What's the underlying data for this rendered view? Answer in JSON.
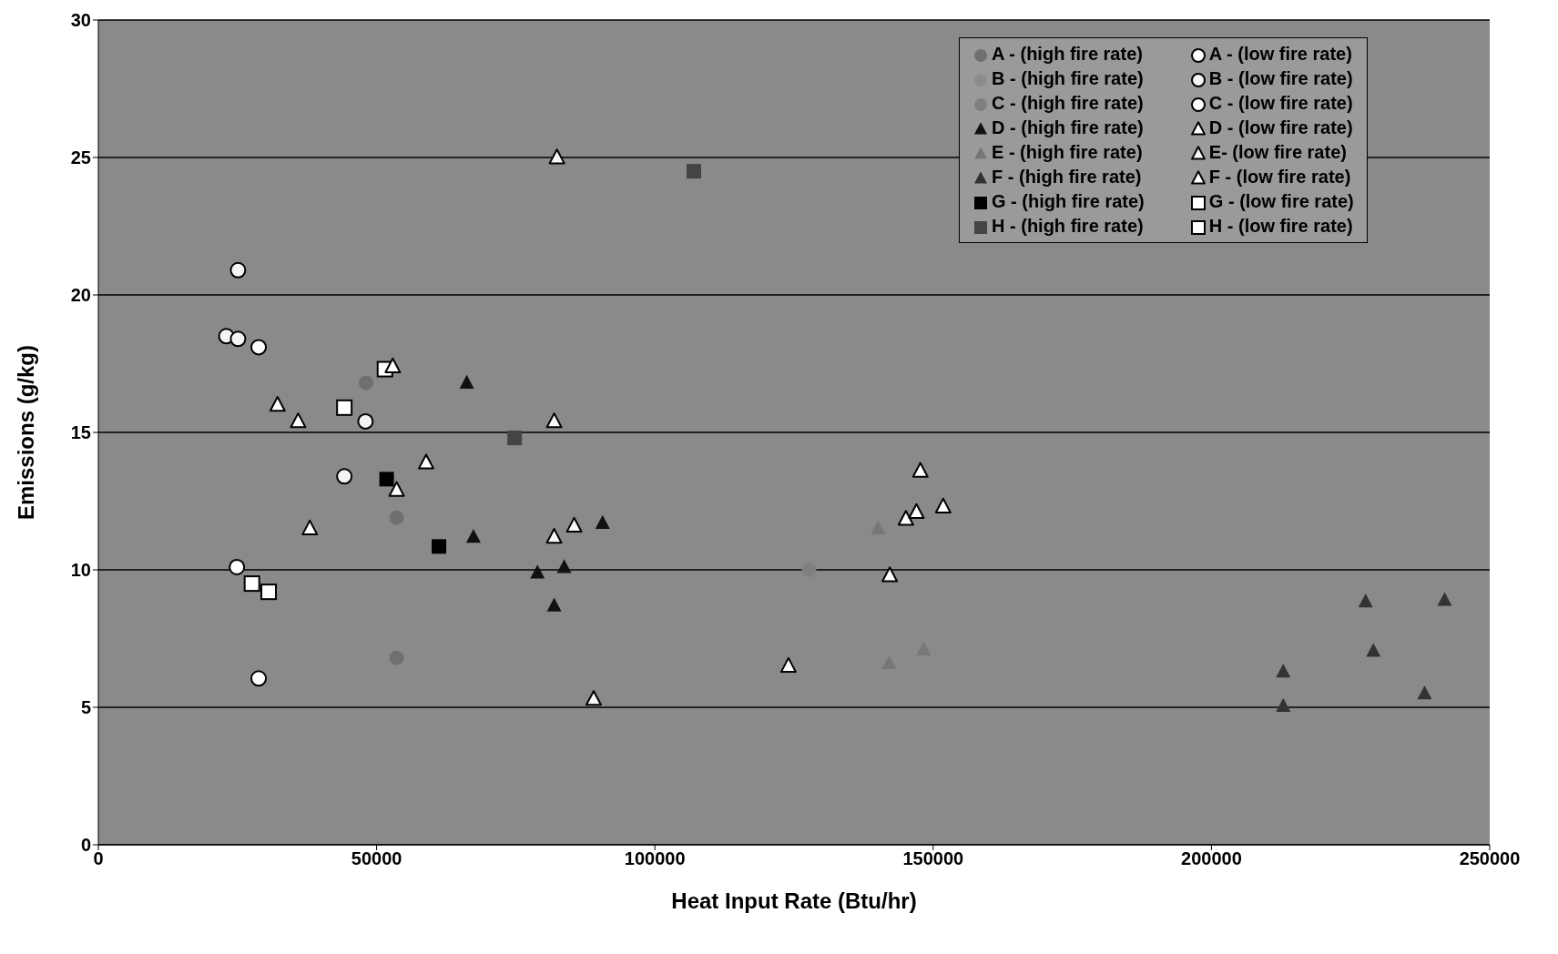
{
  "chart_data": {
    "type": "scatter",
    "xlabel": "Heat Input Rate (Btu/hr)",
    "ylabel": "Emissions (g/kg)",
    "xlim": [
      0,
      250000
    ],
    "xticks": [
      0,
      50000,
      100000,
      150000,
      200000,
      250000
    ],
    "ylim": [
      0,
      30
    ],
    "yticks": [
      0,
      5,
      10,
      15,
      20,
      25,
      30
    ],
    "grid": "y",
    "legend": "top right",
    "series": [
      {
        "name": "A - (high fire rate)",
        "color": "#707070",
        "marker": "circle",
        "x": [
          48100,
          53600,
          53600
        ],
        "values": [
          16.8,
          11.9,
          6.8
        ]
      },
      {
        "name": "A - (low fire rate)",
        "color": "#ffffff",
        "marker": "circle",
        "x": [
          28800,
          28800
        ],
        "values": [
          18.1,
          6.05
        ]
      },
      {
        "name": "B - (high fire rate)",
        "color": "#8c8c8c",
        "marker": "circle"
      },
      {
        "name": "B - (low fire rate)",
        "color": "#f4f4f4",
        "marker": "circle",
        "x": [
          25100,
          23000,
          25100,
          48000,
          44200
        ],
        "values": [
          20.9,
          18.5,
          18.4,
          15.4,
          13.4
        ]
      },
      {
        "name": "C - (high fire rate)",
        "color": "#808080",
        "marker": "circle",
        "x": [
          127700
        ],
        "values": [
          10.0
        ]
      },
      {
        "name": "C - (low fire rate)",
        "color": "#ffffff",
        "marker": "circle",
        "x": [
          24900
        ],
        "values": [
          10.1
        ]
      },
      {
        "name": "D - (high fire rate)",
        "color": "#111111",
        "marker": "triangle",
        "x": [
          66200,
          67400,
          90600,
          78900,
          83700,
          81900
        ],
        "values": [
          16.8,
          11.2,
          11.7,
          9.9,
          10.1,
          8.7
        ]
      },
      {
        "name": "D - (low fire rate)",
        "color": "#ffffff",
        "marker": "triangle",
        "x": [
          32200,
          35900,
          38000,
          58900,
          53600,
          52900
        ],
        "values": [
          16.0,
          15.4,
          11.5,
          13.9,
          12.9,
          17.4
        ]
      },
      {
        "name": "E - (high fire rate)",
        "color": "#777777",
        "marker": "triangle",
        "x": [
          140100,
          142100,
          148300
        ],
        "values": [
          11.5,
          6.6,
          7.1
        ]
      },
      {
        "name": "E- (low fire rate)",
        "color": "#f8f8f8",
        "marker": "triangle",
        "x": [
          82400,
          81900,
          81900,
          85500,
          89000
        ],
        "values": [
          25.0,
          15.4,
          11.2,
          11.6,
          5.3
        ]
      },
      {
        "name": "F - (high fire rate)",
        "color": "#333333",
        "marker": "triangle",
        "x": [
          212900,
          212900,
          227700,
          241900,
          229100,
          238300
        ],
        "values": [
          6.3,
          5.05,
          8.85,
          8.9,
          7.05,
          5.5
        ]
      },
      {
        "name": "F - (low fire rate)",
        "color": "#ffffff",
        "marker": "triangle",
        "x": [
          147700,
          145100,
          147000,
          151800,
          142200,
          124000
        ],
        "values": [
          13.6,
          11.85,
          12.1,
          12.3,
          9.8,
          6.5
        ]
      },
      {
        "name": "G - (high fire rate)",
        "color": "#000000",
        "marker": "square",
        "x": [
          51800,
          61200
        ],
        "values": [
          13.3,
          10.85
        ]
      },
      {
        "name": "G - (low fire rate)",
        "color": "#ffffff",
        "marker": "square",
        "x": [
          51500,
          44200
        ],
        "values": [
          17.3,
          15.9
        ]
      },
      {
        "name": "H - (high fire rate)",
        "color": "#444444",
        "marker": "square",
        "x": [
          107000,
          74800
        ],
        "values": [
          24.5,
          14.8
        ]
      },
      {
        "name": "H - (low fire rate)",
        "color": "#ffffff",
        "marker": "square",
        "x": [
          27600,
          30600
        ],
        "values": [
          9.5,
          9.2
        ]
      }
    ]
  }
}
